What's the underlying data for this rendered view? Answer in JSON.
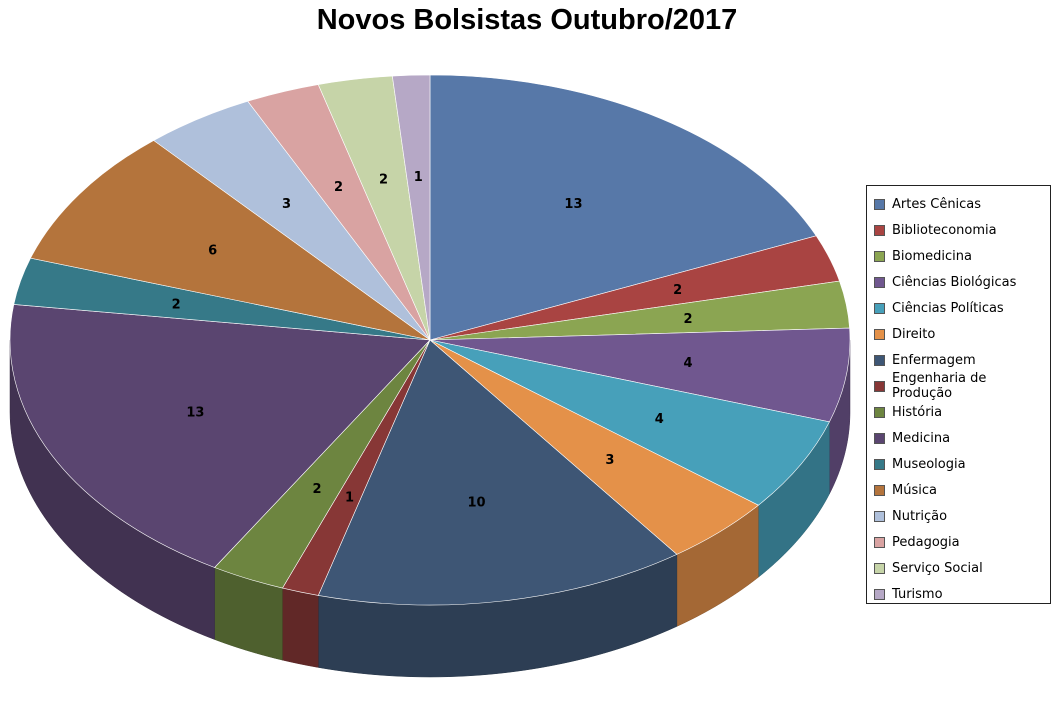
{
  "chart_data": {
    "type": "pie",
    "style": "3d",
    "title": "Novos Bolsistas Outubro/2017",
    "legend_position": "right",
    "categories": [
      "Artes Cênicas",
      "Biblioteconomia",
      "Biomedicina",
      "Ciências Biológicas",
      "Ciências Políticas",
      "Direito",
      "Enfermagem",
      "Engenharia de Produção",
      "História",
      "Medicina",
      "Museologia",
      "Música",
      "Nutrição",
      "Pedagogia",
      "Serviço Social",
      "Turismo"
    ],
    "values": [
      13,
      2,
      2,
      4,
      4,
      3,
      10,
      1,
      2,
      13,
      2,
      6,
      3,
      2,
      2,
      1
    ],
    "data_labels": [
      "13",
      "2",
      "2",
      "4",
      "4",
      "3",
      "10",
      "1",
      "2",
      "13",
      "2",
      "6",
      "3",
      "2",
      "2",
      "1"
    ],
    "colors": [
      "#5778A8",
      "#A94442",
      "#8BA552",
      "#70578F",
      "#47A0BA",
      "#E49149",
      "#3E5675",
      "#873736",
      "#6D8540",
      "#5A4570",
      "#367988",
      "#B4743C",
      "#AFC0DB",
      "#D9A3A2",
      "#C6D4A8",
      "#B6A8C6"
    ]
  }
}
